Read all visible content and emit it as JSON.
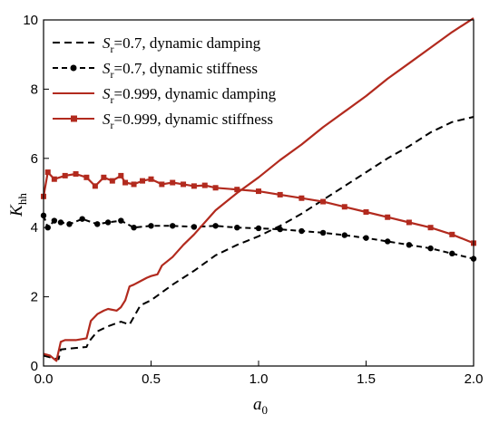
{
  "chart_data": {
    "type": "line",
    "title": "",
    "xlabel": {
      "main": "a",
      "sub": "0"
    },
    "ylabel": {
      "main": "K",
      "sub": "hh"
    },
    "xlim": [
      0,
      2.0
    ],
    "ylim": [
      0,
      10
    ],
    "xticks": [
      "0.0",
      "0.5",
      "1.0",
      "1.5",
      "2.0"
    ],
    "yticks": [
      "0",
      "2",
      "4",
      "6",
      "8",
      "10"
    ],
    "legend_position": "top-left",
    "grid": false,
    "series": [
      {
        "name": "Sr=0.7, dynamic damping",
        "legend": {
          "pre": "S",
          "sub": "r",
          "post": "=0.7, dynamic damping"
        },
        "color": "#000000",
        "dash": "8,5",
        "marker": "none",
        "x": [
          0.0,
          0.05,
          0.07,
          0.08,
          0.2,
          0.21,
          0.25,
          0.3,
          0.36,
          0.4,
          0.45,
          0.5,
          0.6,
          0.7,
          0.8,
          0.9,
          1.0,
          1.1,
          1.2,
          1.3,
          1.4,
          1.5,
          1.6,
          1.7,
          1.8,
          1.9,
          2.0
        ],
        "y": [
          0.3,
          0.22,
          0.2,
          0.48,
          0.55,
          0.7,
          1.0,
          1.15,
          1.28,
          1.2,
          1.75,
          1.9,
          2.35,
          2.75,
          3.2,
          3.5,
          3.75,
          4.05,
          4.4,
          4.8,
          5.2,
          5.6,
          6.0,
          6.35,
          6.75,
          7.05,
          7.2
        ]
      },
      {
        "name": "Sr=0.7, dynamic stiffness",
        "legend": {
          "pre": "S",
          "sub": "r",
          "post": "=0.7, dynamic stiffness"
        },
        "color": "#000000",
        "dash": "6,4",
        "marker": "circle",
        "x": [
          0.0,
          0.02,
          0.05,
          0.08,
          0.12,
          0.18,
          0.25,
          0.3,
          0.36,
          0.42,
          0.5,
          0.6,
          0.7,
          0.8,
          0.9,
          1.0,
          1.1,
          1.2,
          1.3,
          1.4,
          1.5,
          1.6,
          1.7,
          1.8,
          1.9,
          2.0
        ],
        "y": [
          4.35,
          4.0,
          4.2,
          4.15,
          4.1,
          4.25,
          4.1,
          4.15,
          4.2,
          4.0,
          4.05,
          4.05,
          4.02,
          4.05,
          4.0,
          3.98,
          3.95,
          3.9,
          3.85,
          3.78,
          3.7,
          3.6,
          3.5,
          3.4,
          3.25,
          3.1
        ]
      },
      {
        "name": "Sr=0.999, dynamic damping",
        "legend": {
          "pre": "S",
          "sub": "r",
          "post": "=0.999, dynamic damping"
        },
        "color": "#b22a1e",
        "dash": "",
        "marker": "none",
        "x": [
          0.0,
          0.03,
          0.06,
          0.08,
          0.1,
          0.15,
          0.2,
          0.22,
          0.25,
          0.28,
          0.3,
          0.34,
          0.36,
          0.38,
          0.4,
          0.42,
          0.45,
          0.48,
          0.5,
          0.53,
          0.55,
          0.6,
          0.65,
          0.7,
          0.8,
          0.9,
          1.0,
          1.1,
          1.2,
          1.3,
          1.4,
          1.5,
          1.6,
          1.7,
          1.8,
          1.9,
          2.0
        ],
        "y": [
          0.35,
          0.3,
          0.15,
          0.7,
          0.75,
          0.75,
          0.8,
          1.3,
          1.5,
          1.6,
          1.65,
          1.6,
          1.7,
          1.9,
          2.3,
          2.35,
          2.45,
          2.55,
          2.6,
          2.65,
          2.9,
          3.15,
          3.5,
          3.8,
          4.5,
          5.0,
          5.45,
          5.95,
          6.4,
          6.9,
          7.35,
          7.8,
          8.3,
          8.75,
          9.2,
          9.65,
          10.05
        ]
      },
      {
        "name": "Sr=0.999, dynamic stiffness",
        "legend": {
          "pre": "S",
          "sub": "r",
          "post": "=0.999, dynamic stiffness"
        },
        "color": "#b22a1e",
        "dash": "",
        "marker": "square",
        "x": [
          0.0,
          0.02,
          0.05,
          0.1,
          0.15,
          0.2,
          0.24,
          0.28,
          0.32,
          0.36,
          0.38,
          0.42,
          0.46,
          0.5,
          0.55,
          0.6,
          0.65,
          0.7,
          0.75,
          0.8,
          0.9,
          1.0,
          1.1,
          1.2,
          1.3,
          1.4,
          1.5,
          1.6,
          1.7,
          1.8,
          1.9,
          2.0
        ],
        "y": [
          4.9,
          5.6,
          5.4,
          5.5,
          5.55,
          5.45,
          5.2,
          5.45,
          5.35,
          5.5,
          5.3,
          5.25,
          5.35,
          5.4,
          5.25,
          5.3,
          5.25,
          5.2,
          5.22,
          5.15,
          5.1,
          5.05,
          4.95,
          4.85,
          4.75,
          4.6,
          4.45,
          4.3,
          4.15,
          4.0,
          3.8,
          3.55
        ]
      }
    ]
  }
}
